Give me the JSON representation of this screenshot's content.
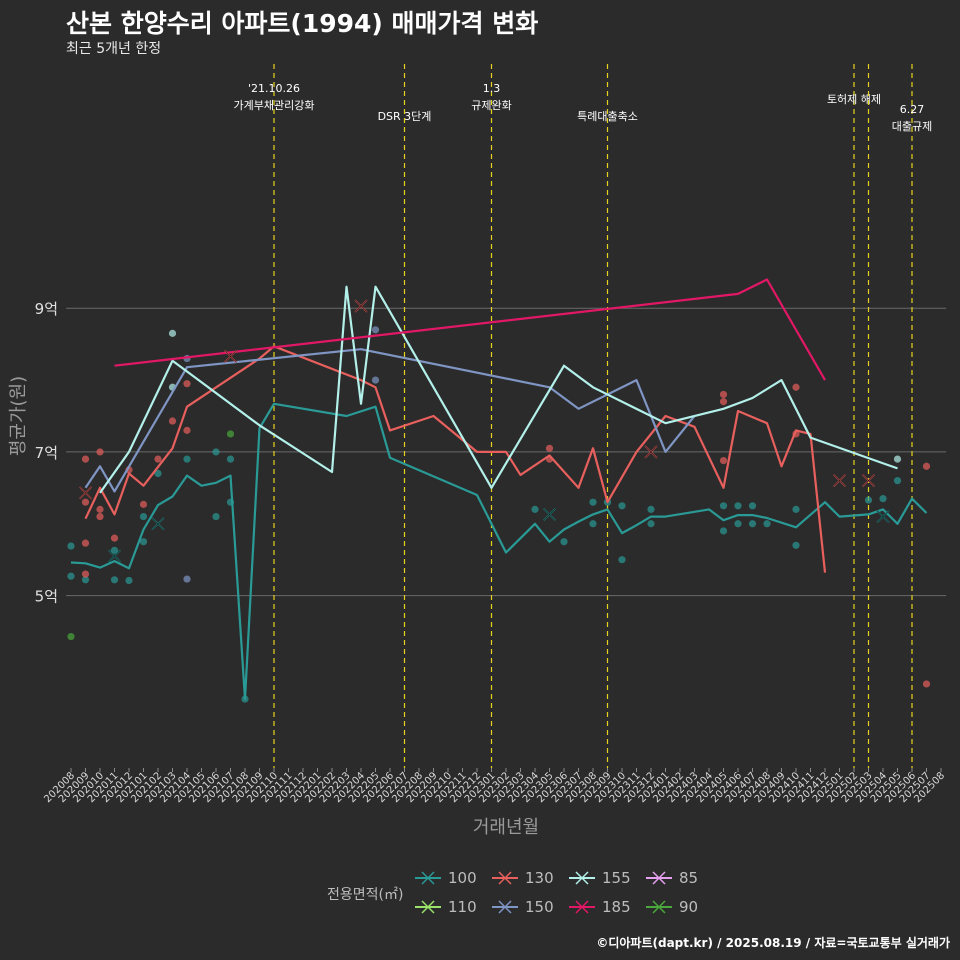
{
  "header": {
    "title": "산본 한양수리 아파트(1994) 매매가격 변화",
    "subtitle": "최근 5개년 한정"
  },
  "caption": "©디아파트(dapt.kr) / 2025.08.19 / 자료=국토교통부 실거래가",
  "legend": {
    "title": "전용면적(㎡)",
    "items": [
      {
        "label": "100",
        "color": "#2a9a96"
      },
      {
        "label": "110",
        "color": "#9be26b"
      },
      {
        "label": "130",
        "color": "#e8605d"
      },
      {
        "label": "150",
        "color": "#7f95c4"
      },
      {
        "label": "155",
        "color": "#b3f0ea"
      },
      {
        "label": "185",
        "color": "#e21866"
      },
      {
        "label": "85",
        "color": "#e6a0f0"
      },
      {
        "label": "90",
        "color": "#4aa83c"
      }
    ]
  },
  "chart_data": {
    "type": "line",
    "xlabel": "거래년월",
    "ylabel": "평균가(원)",
    "ylim": [
      2.6,
      12.4
    ],
    "yticks": [
      {
        "value": 5,
        "label": "5억"
      },
      {
        "value": 7,
        "label": "7억"
      },
      {
        "value": 9,
        "label": "9억"
      }
    ],
    "categories": [
      "202008",
      "202009",
      "202010",
      "202011",
      "202012",
      "202101",
      "202102",
      "202103",
      "202104",
      "202105",
      "202106",
      "202107",
      "202108",
      "202109",
      "202110",
      "202111",
      "202112",
      "202201",
      "202202",
      "202203",
      "202204",
      "202205",
      "202206",
      "202207",
      "202208",
      "202209",
      "202210",
      "202211",
      "202212",
      "202301",
      "202302",
      "202303",
      "202304",
      "202305",
      "202306",
      "202307",
      "202308",
      "202309",
      "202310",
      "202311",
      "202312",
      "202401",
      "202402",
      "202403",
      "202404",
      "202405",
      "202406",
      "202407",
      "202408",
      "202409",
      "202410",
      "202411",
      "202412",
      "202501",
      "202502",
      "202503",
      "202504",
      "202505",
      "202506",
      "202507",
      "202508"
    ],
    "events": [
      {
        "x": "202110",
        "label": "'21.10.26\n가계부채관리강화",
        "row": 1
      },
      {
        "x": "202207",
        "label": "DSR 3단계",
        "row": 2
      },
      {
        "x": "202301",
        "label": "1.3\n규제완화",
        "row": 1
      },
      {
        "x": "202309",
        "label": "특례대출축소",
        "row": 2
      },
      {
        "x": "202502",
        "label": "토허제 해제",
        "row": 1
      },
      {
        "x": "202503",
        "label": "",
        "row": 1
      },
      {
        "x": "202506",
        "label": "6.27\n대출규제",
        "row": 3
      }
    ],
    "series": [
      {
        "name": "100",
        "color": "#2a9a96",
        "points": [
          [
            "202008",
            5.46
          ],
          [
            "202009",
            5.45
          ],
          [
            "202010",
            5.39
          ],
          [
            "202011",
            5.48
          ],
          [
            "202012",
            5.38
          ],
          [
            "202101",
            5.92
          ],
          [
            "202102",
            6.26
          ],
          [
            "202103",
            6.38
          ],
          [
            "202104",
            6.67
          ],
          [
            "202105",
            6.53
          ],
          [
            "202106",
            6.57
          ],
          [
            "202107",
            6.67
          ],
          [
            "202108",
            3.56
          ],
          [
            "202109",
            7.33
          ],
          [
            "202110",
            7.67
          ],
          [
            "202203",
            7.5
          ],
          [
            "202205",
            7.63
          ],
          [
            "202206",
            6.92
          ],
          [
            "202212",
            6.4
          ],
          [
            "202302",
            5.6
          ],
          [
            "202304",
            6.0
          ],
          [
            "202305",
            5.75
          ],
          [
            "202306",
            5.92
          ],
          [
            "202307",
            6.03
          ],
          [
            "202308",
            6.13
          ],
          [
            "202309",
            6.2
          ],
          [
            "202310",
            5.87
          ],
          [
            "202311",
            5.98
          ],
          [
            "202312",
            6.1
          ],
          [
            "202401",
            6.1
          ],
          [
            "202404",
            6.2
          ],
          [
            "202405",
            6.05
          ],
          [
            "202406",
            6.12
          ],
          [
            "202407",
            6.12
          ],
          [
            "202408",
            6.08
          ],
          [
            "202410",
            5.95
          ],
          [
            "202412",
            6.3
          ],
          [
            "202501",
            6.1
          ],
          [
            "202503",
            6.13
          ],
          [
            "202504",
            6.2
          ],
          [
            "202505",
            6.0
          ],
          [
            "202506",
            6.35
          ],
          [
            "202507",
            6.15
          ]
        ]
      },
      {
        "name": "130",
        "color": "#e8605d",
        "points": [
          [
            "202009",
            6.07
          ],
          [
            "202010",
            6.5
          ],
          [
            "202011",
            6.13
          ],
          [
            "202012",
            6.7
          ],
          [
            "202101",
            6.53
          ],
          [
            "202103",
            7.05
          ],
          [
            "202104",
            7.63
          ],
          [
            "202109",
            8.3
          ],
          [
            "202110",
            8.47
          ],
          [
            "202204",
            8.0
          ],
          [
            "202205",
            7.9
          ],
          [
            "202206",
            7.3
          ],
          [
            "202209",
            7.5
          ],
          [
            "202212",
            7.0
          ],
          [
            "202302",
            7.0
          ],
          [
            "202303",
            6.68
          ],
          [
            "202305",
            6.95
          ],
          [
            "202307",
            6.5
          ],
          [
            "202308",
            7.05
          ],
          [
            "202309",
            6.3
          ],
          [
            "202311",
            7.0
          ],
          [
            "202312",
            7.25
          ],
          [
            "202401",
            7.5
          ],
          [
            "202403",
            7.35
          ],
          [
            "202405",
            6.5
          ],
          [
            "202406",
            7.57
          ],
          [
            "202408",
            7.4
          ],
          [
            "202409",
            6.8
          ],
          [
            "202410",
            7.3
          ],
          [
            "202411",
            7.25
          ],
          [
            "202412",
            5.32
          ]
        ]
      },
      {
        "name": "150",
        "color": "#7f95c4",
        "points": [
          [
            "202009",
            6.5
          ],
          [
            "202010",
            6.8
          ],
          [
            "202011",
            6.45
          ],
          [
            "202104",
            8.18
          ],
          [
            "202204",
            8.43
          ],
          [
            "202305",
            7.9
          ],
          [
            "202307",
            7.6
          ],
          [
            "202311",
            8.0
          ],
          [
            "202401",
            7.0
          ],
          [
            "202403",
            7.5
          ]
        ]
      },
      {
        "name": "155",
        "color": "#b3f0ea",
        "points": [
          [
            "202010",
            6.43
          ],
          [
            "202012",
            7.0
          ],
          [
            "202103",
            8.27
          ],
          [
            "202109",
            7.37
          ],
          [
            "202202",
            6.72
          ],
          [
            "202203",
            9.3
          ],
          [
            "202204",
            7.67
          ],
          [
            "202205",
            9.3
          ],
          [
            "202301",
            6.5
          ],
          [
            "202306",
            8.2
          ],
          [
            "202308",
            7.9
          ],
          [
            "202401",
            7.4
          ],
          [
            "202405",
            7.6
          ],
          [
            "202407",
            7.75
          ],
          [
            "202409",
            8.0
          ],
          [
            "202411",
            7.2
          ],
          [
            "202505",
            6.77
          ]
        ]
      },
      {
        "name": "185",
        "color": "#e21866",
        "points": [
          [
            "202011",
            8.2
          ],
          [
            "202406",
            9.2
          ],
          [
            "202408",
            9.4
          ],
          [
            "202412",
            8.0
          ]
        ]
      }
    ],
    "scatter": [
      {
        "series": "100",
        "x": "202008",
        "y": 5.27
      },
      {
        "series": "100",
        "x": "202008",
        "y": 5.69
      },
      {
        "series": "100",
        "x": "202009",
        "y": 5.22
      },
      {
        "series": "100",
        "x": "202011",
        "y": 5.22
      },
      {
        "series": "100",
        "x": "202011",
        "y": 5.63
      },
      {
        "series": "100",
        "x": "202012",
        "y": 5.21
      },
      {
        "series": "100",
        "x": "202101",
        "y": 5.75
      },
      {
        "series": "100",
        "x": "202101",
        "y": 6.1
      },
      {
        "series": "100",
        "x": "202102",
        "y": 6.7
      },
      {
        "series": "100",
        "x": "202104",
        "y": 6.9
      },
      {
        "series": "100",
        "x": "202106",
        "y": 7.0
      },
      {
        "series": "100",
        "x": "202106",
        "y": 6.1
      },
      {
        "series": "100",
        "x": "202107",
        "y": 6.9
      },
      {
        "series": "100",
        "x": "202107",
        "y": 6.3
      },
      {
        "series": "100",
        "x": "202108",
        "y": 3.56
      },
      {
        "series": "100",
        "x": "202304",
        "y": 6.2
      },
      {
        "series": "100",
        "x": "202306",
        "y": 5.75
      },
      {
        "series": "100",
        "x": "202308",
        "y": 6.0
      },
      {
        "series": "100",
        "x": "202308",
        "y": 6.3
      },
      {
        "series": "100",
        "x": "202309",
        "y": 6.3
      },
      {
        "series": "100",
        "x": "202310",
        "y": 5.5
      },
      {
        "series": "100",
        "x": "202310",
        "y": 6.25
      },
      {
        "series": "100",
        "x": "202312",
        "y": 6.2
      },
      {
        "series": "100",
        "x": "202312",
        "y": 6.0
      },
      {
        "series": "100",
        "x": "202405",
        "y": 5.9
      },
      {
        "series": "100",
        "x": "202405",
        "y": 6.25
      },
      {
        "series": "100",
        "x": "202406",
        "y": 6.0
      },
      {
        "series": "100",
        "x": "202406",
        "y": 6.25
      },
      {
        "series": "100",
        "x": "202407",
        "y": 6.0
      },
      {
        "series": "100",
        "x": "202407",
        "y": 6.25
      },
      {
        "series": "100",
        "x": "202408",
        "y": 6.0
      },
      {
        "series": "100",
        "x": "202410",
        "y": 5.7
      },
      {
        "series": "100",
        "x": "202410",
        "y": 6.2
      },
      {
        "series": "100",
        "x": "202503",
        "y": 6.33
      },
      {
        "series": "100",
        "x": "202504",
        "y": 6.35
      },
      {
        "series": "100",
        "x": "202505",
        "y": 6.6
      },
      {
        "series": "130",
        "x": "202009",
        "y": 6.9
      },
      {
        "series": "130",
        "x": "202009",
        "y": 6.3
      },
      {
        "series": "130",
        "x": "202009",
        "y": 5.3
      },
      {
        "series": "130",
        "x": "202009",
        "y": 5.73
      },
      {
        "series": "130",
        "x": "202010",
        "y": 7.0
      },
      {
        "series": "130",
        "x": "202010",
        "y": 6.2
      },
      {
        "series": "130",
        "x": "202010",
        "y": 6.1
      },
      {
        "series": "130",
        "x": "202011",
        "y": 5.8
      },
      {
        "series": "130",
        "x": "202012",
        "y": 6.75
      },
      {
        "series": "130",
        "x": "202101",
        "y": 6.27
      },
      {
        "series": "130",
        "x": "202102",
        "y": 6.9
      },
      {
        "series": "130",
        "x": "202103",
        "y": 7.43
      },
      {
        "series": "130",
        "x": "202104",
        "y": 7.3
      },
      {
        "series": "130",
        "x": "202104",
        "y": 7.95
      },
      {
        "series": "130",
        "x": "202305",
        "y": 7.05
      },
      {
        "series": "130",
        "x": "202305",
        "y": 6.9
      },
      {
        "series": "130",
        "x": "202405",
        "y": 7.8
      },
      {
        "series": "130",
        "x": "202405",
        "y": 7.7
      },
      {
        "series": "130",
        "x": "202405",
        "y": 6.88
      },
      {
        "series": "130",
        "x": "202410",
        "y": 7.25
      },
      {
        "series": "130",
        "x": "202410",
        "y": 7.9
      },
      {
        "series": "130",
        "x": "202507",
        "y": 6.8
      },
      {
        "series": "130",
        "x": "202507",
        "y": 3.77
      },
      {
        "series": "150",
        "x": "202104",
        "y": 5.23
      },
      {
        "series": "150",
        "x": "202104",
        "y": 8.3
      },
      {
        "series": "150",
        "x": "202205",
        "y": 8.7
      },
      {
        "series": "150",
        "x": "202205",
        "y": 8.0
      },
      {
        "series": "155",
        "x": "202103",
        "y": 8.65
      },
      {
        "series": "155",
        "x": "202103",
        "y": 7.9
      },
      {
        "series": "155",
        "x": "202505",
        "y": 6.9
      },
      {
        "series": "90",
        "x": "202008",
        "y": 4.43
      },
      {
        "series": "90",
        "x": "202107",
        "y": 7.25
      }
    ],
    "crosses": [
      {
        "series": "130",
        "x": "202009",
        "y": 6.43
      },
      {
        "series": "100",
        "x": "202011",
        "y": 5.55
      },
      {
        "series": "100",
        "x": "202102",
        "y": 6.0
      },
      {
        "series": "130",
        "x": "202107",
        "y": 8.33
      },
      {
        "series": "130",
        "x": "202204",
        "y": 9.03
      },
      {
        "series": "100",
        "x": "202305",
        "y": 6.13
      },
      {
        "series": "130",
        "x": "202312",
        "y": 7.0
      },
      {
        "series": "130",
        "x": "202501",
        "y": 6.6
      },
      {
        "series": "130",
        "x": "202503",
        "y": 6.6
      },
      {
        "series": "100",
        "x": "202504",
        "y": 6.1
      }
    ]
  }
}
